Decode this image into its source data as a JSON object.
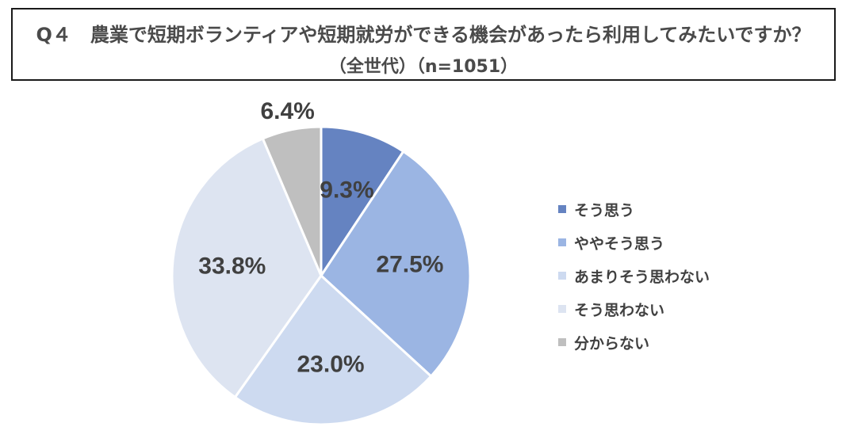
{
  "title": {
    "line1": "Q４　農業で短期ボランティアや短期就労ができる機会があったら利用してみたいですか？",
    "line2": "（全世代）（n=1051）"
  },
  "chart_data": {
    "type": "pie",
    "start_angle_deg": 0,
    "direction": "clockwise",
    "categories": [
      "そう思う",
      "ややそう思う",
      "あまりそう思わない",
      "そう思わない",
      "分からない"
    ],
    "values": [
      9.3,
      27.5,
      23.0,
      33.8,
      6.4
    ],
    "labels": [
      "9.3%",
      "27.5%",
      "23.0%",
      "33.8%",
      "6.4%"
    ],
    "colors": [
      "#6583C1",
      "#9BB5E3",
      "#CDDAF0",
      "#DDE4F1",
      "#BFBFBF"
    ],
    "legend_position": "right"
  }
}
